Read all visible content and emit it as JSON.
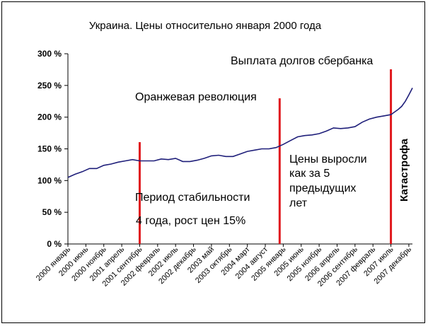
{
  "chart_data": {
    "type": "line",
    "title": "Украина. Цены относительно января 2000 года",
    "xlabel": "",
    "ylabel": "",
    "ylim": [
      0,
      300
    ],
    "y_ticks": [
      "0 %",
      "50 %",
      "100 %",
      "150 %",
      "200 %",
      "250 %",
      "300 %"
    ],
    "y_tick_values": [
      0,
      50,
      100,
      150,
      200,
      250,
      300
    ],
    "x_ticks": [
      "2000 январь",
      "2000 июнь",
      "2000 ноябрь",
      "2001 апрель",
      "2001 сентябрь",
      "2002 февраль",
      "2002 июль",
      "2002 декабрь",
      "2003 май",
      "2003 октябрь",
      "2004 март",
      "2004 август",
      "2005 январь",
      "2005 июнь",
      "2005 ноябрь",
      "2006 апрель",
      "2006 сентябрь",
      "2007 февраль",
      "2007 июль",
      "2007 декабрь"
    ],
    "x_tick_values": [
      "2000-01",
      "2000-06",
      "2000-11",
      "2001-04",
      "2001-09",
      "2002-02",
      "2002-07",
      "2002-12",
      "2003-05",
      "2003-10",
      "2004-03",
      "2004-08",
      "2005-01",
      "2005-06",
      "2005-11",
      "2006-04",
      "2006-09",
      "2007-02",
      "2007-07",
      "2007-12"
    ],
    "grid": false,
    "series": [
      {
        "name": "",
        "color": "#1f1f7a",
        "x": [
          "2000-01",
          "2000-03",
          "2000-05",
          "2000-07",
          "2000-09",
          "2000-11",
          "2001-01",
          "2001-03",
          "2001-05",
          "2001-07",
          "2001-09",
          "2001-11",
          "2002-01",
          "2002-03",
          "2002-05",
          "2002-07",
          "2002-09",
          "2002-11",
          "2003-01",
          "2003-03",
          "2003-05",
          "2003-07",
          "2003-09",
          "2003-11",
          "2004-01",
          "2004-03",
          "2004-05",
          "2004-07",
          "2004-09",
          "2004-11",
          "2005-01",
          "2005-03",
          "2005-05",
          "2005-07",
          "2005-09",
          "2005-11",
          "2006-01",
          "2006-03",
          "2006-05",
          "2006-07",
          "2006-09",
          "2006-11",
          "2007-01",
          "2007-03",
          "2007-05",
          "2007-07",
          "2007-08",
          "2007-09",
          "2007-10",
          "2007-11",
          "2007-12",
          "2008-01"
        ],
        "y": [
          105,
          110,
          114,
          119,
          119,
          124,
          126,
          129,
          131,
          133,
          131,
          131,
          131,
          134,
          133,
          135,
          130,
          130,
          132,
          135,
          139,
          140,
          138,
          138,
          142,
          146,
          148,
          150,
          150,
          152,
          157,
          163,
          169,
          171,
          172,
          174,
          178,
          183,
          182,
          183,
          185,
          192,
          197,
          200,
          202,
          204,
          208,
          212,
          217,
          225,
          235,
          246
        ]
      }
    ],
    "event_lines": [
      {
        "x": "2001-09",
        "color": "#e0191e",
        "label": "Период стабильности\n4 года, рост цен 15%"
      },
      {
        "x": "2004-12",
        "color": "#e0191e",
        "label": "Оранжевая революция"
      },
      {
        "x": "2007-07",
        "color": "#e0191e",
        "label": "Выплата долгов сбербанка"
      }
    ],
    "annotations": {
      "stability_1": "Период стабильности",
      "stability_2": "4 года, рост цен 15%",
      "orange": "Оранжевая революция",
      "debts": "Выплата долгов сбербанка",
      "prices_1": "Цены выросли",
      "prices_2": "как за 5",
      "prices_3": "предыдущих",
      "prices_4": "лет",
      "catastrophe": "Катастрофа"
    }
  }
}
